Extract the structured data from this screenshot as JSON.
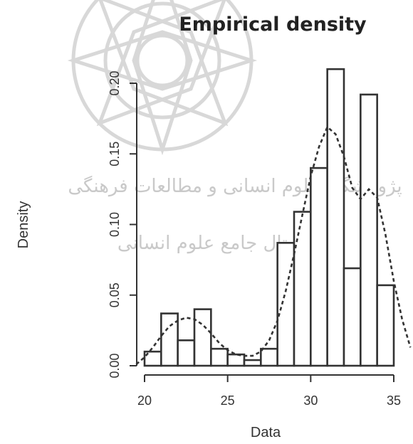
{
  "chart_data": {
    "type": "histogram",
    "title": "Empirical density",
    "xlabel": "Data",
    "ylabel": "Density",
    "xlim": [
      19.5,
      36
    ],
    "ylim": [
      0,
      0.21
    ],
    "x_ticks": [
      "20",
      "25",
      "30",
      "35"
    ],
    "y_ticks": [
      "0.00",
      "0.05",
      "0.10",
      "0.15",
      "0.20"
    ],
    "bin_edges": [
      20,
      21,
      22,
      23,
      24,
      25,
      26,
      27,
      28,
      29,
      30,
      31,
      32,
      33,
      34,
      35
    ],
    "values": [
      0.01,
      0.037,
      0.018,
      0.04,
      0.012,
      0.008,
      0.004,
      0.012,
      0.087,
      0.109,
      0.14,
      0.21,
      0.069,
      0.192,
      0.057
    ],
    "density_curve": {
      "style": "dashed",
      "x": [
        19.5,
        20,
        20.5,
        21,
        21.5,
        22,
        22.5,
        23,
        23.5,
        24,
        24.5,
        25,
        25.5,
        26,
        26.5,
        27,
        27.5,
        28,
        28.5,
        29,
        29.5,
        30,
        30.5,
        31,
        31.5,
        32,
        32.5,
        33,
        33.5,
        34,
        34.5,
        35,
        35.5,
        36
      ],
      "y": [
        0.001,
        0.006,
        0.013,
        0.021,
        0.028,
        0.032,
        0.034,
        0.033,
        0.029,
        0.023,
        0.016,
        0.011,
        0.008,
        0.007,
        0.007,
        0.01,
        0.018,
        0.032,
        0.053,
        0.079,
        0.107,
        0.134,
        0.155,
        0.169,
        0.164,
        0.148,
        0.126,
        0.118,
        0.125,
        0.119,
        0.093,
        0.06,
        0.033,
        0.013
      ]
    }
  },
  "watermark": {
    "line1": "پژوهشگاه علوم انسانی و مطالعات فرهنگی",
    "line2": "پرتال جامع علوم انسانی"
  }
}
